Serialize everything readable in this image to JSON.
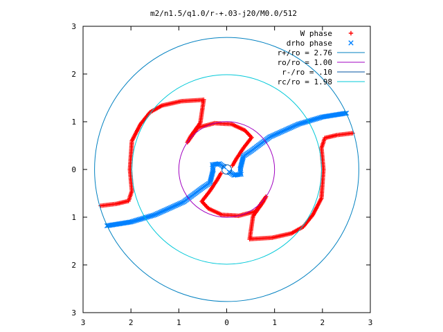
{
  "chart_data": {
    "type": "scatter",
    "title": "m2/n1.5/q1.0/r-+.03-j20/M0.0/512",
    "xlabel": "",
    "ylabel": "",
    "xlim": [
      -3,
      3
    ],
    "ylim": [
      -3,
      3
    ],
    "x_ticks": [
      -3,
      -2,
      -1,
      0,
      1,
      2,
      3
    ],
    "y_ticks": [
      -3,
      -2,
      -1,
      0,
      1,
      2,
      3
    ],
    "x_tick_labels": [
      "3",
      "2",
      "1",
      "0",
      "1",
      "2",
      "3"
    ],
    "y_tick_labels": [
      "3",
      "2",
      "1",
      "0",
      "1",
      "2",
      "3"
    ],
    "grid": false,
    "legend_position": "top-right",
    "series": [
      {
        "name": "W phase",
        "marker": "+",
        "color": "#ff0000",
        "anchors": [
          [
            -2.63,
            -0.76
          ],
          [
            -2.3,
            -0.72
          ],
          [
            -2.05,
            -0.66
          ],
          [
            -1.98,
            -0.45
          ],
          [
            -2.02,
            0.0
          ],
          [
            -1.98,
            0.6
          ],
          [
            -1.8,
            0.95
          ],
          [
            -1.6,
            1.2
          ],
          [
            -1.35,
            1.34
          ],
          [
            -0.95,
            1.43
          ],
          [
            -0.48,
            1.46
          ],
          [
            -0.55,
            0.98
          ],
          [
            -0.75,
            0.7
          ],
          [
            -0.82,
            0.57
          ],
          [
            -0.6,
            0.88
          ],
          [
            -0.25,
            0.97
          ],
          [
            0.1,
            0.95
          ],
          [
            0.38,
            0.82
          ],
          [
            0.52,
            0.67
          ],
          [
            0.35,
            0.45
          ],
          [
            0.2,
            0.22
          ],
          [
            0.12,
            0.08
          ]
        ],
        "anchors2": [
          [
            2.63,
            0.76
          ],
          [
            2.3,
            0.72
          ],
          [
            2.05,
            0.66
          ],
          [
            1.98,
            0.45
          ],
          [
            2.02,
            0.0
          ],
          [
            1.98,
            -0.6
          ],
          [
            1.8,
            -0.95
          ],
          [
            1.6,
            -1.2
          ],
          [
            1.35,
            -1.34
          ],
          [
            0.95,
            -1.43
          ],
          [
            0.48,
            -1.46
          ],
          [
            0.55,
            -0.98
          ],
          [
            0.75,
            -0.7
          ],
          [
            0.82,
            -0.57
          ],
          [
            0.6,
            -0.88
          ],
          [
            0.25,
            -0.97
          ],
          [
            -0.1,
            -0.95
          ],
          [
            -0.38,
            -0.82
          ],
          [
            -0.52,
            -0.67
          ],
          [
            -0.35,
            -0.45
          ],
          [
            -0.2,
            -0.22
          ],
          [
            -0.12,
            -0.08
          ]
        ]
      },
      {
        "name": "drho phase",
        "marker": "x",
        "color": "#0080ff",
        "anchors": [
          [
            -2.5,
            -1.18
          ],
          [
            -2.0,
            -1.1
          ],
          [
            -1.5,
            -0.95
          ],
          [
            -0.9,
            -0.68
          ],
          [
            -0.5,
            -0.38
          ],
          [
            -0.35,
            -0.28
          ],
          [
            -0.28,
            0.0
          ],
          [
            -0.3,
            0.1
          ],
          [
            -0.15,
            0.12
          ],
          [
            -0.05,
            0.05
          ]
        ],
        "anchors2": [
          [
            2.5,
            1.18
          ],
          [
            2.0,
            1.1
          ],
          [
            1.5,
            0.95
          ],
          [
            0.9,
            0.68
          ],
          [
            0.5,
            0.38
          ],
          [
            0.35,
            0.28
          ],
          [
            0.28,
            0.0
          ],
          [
            0.3,
            -0.1
          ],
          [
            0.15,
            -0.12
          ],
          [
            0.05,
            -0.05
          ]
        ]
      },
      {
        "name": "r+/ro = 2.76",
        "type": "circle",
        "radius": 2.76,
        "color": "#0080c0"
      },
      {
        "name": "ro/ro = 1.00",
        "type": "circle",
        "radius": 1.0,
        "color": "#a000c0"
      },
      {
        "name": "r-/ro = .10",
        "type": "circle",
        "radius": 0.1,
        "color": "#0050a0"
      },
      {
        "name": "rc/ro = 1.98",
        "type": "circle",
        "radius": 1.98,
        "color": "#00c8d8"
      }
    ]
  }
}
